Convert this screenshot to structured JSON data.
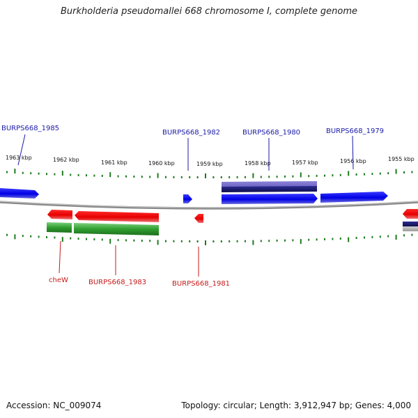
{
  "title": "Burkholderia pseudomallei 668 chromosome I, complete genome",
  "footer": {
    "accession": "Accession: NC_009074",
    "stats": "Topology: circular; Length: 3,912,947 bp; Genes: 4,000"
  },
  "ticks": [
    "1963 kbp",
    "1962 kbp",
    "1961 kbp",
    "1960 kbp",
    "1959 kbp",
    "1958 kbp",
    "1957 kbp",
    "1956 kbp",
    "1955 kbp"
  ],
  "forward_labels": [
    "BURPS668_1985",
    "BURPS668_1982",
    "BURPS668_1980",
    "BURPS668_1979"
  ],
  "reverse_labels": [
    "cheW",
    "BURPS668_1983",
    "BURPS668_1981"
  ],
  "colors": {
    "forward_label": "#1a1aa6",
    "reverse_label": "#c41a1a",
    "forward_gene": "#0000ee",
    "reverse_gene": "#ee0000",
    "cds_green": "#2e9e2e",
    "navy": "#1a1a80",
    "backbone": "#808080",
    "tick": "#1e7a1e"
  }
}
